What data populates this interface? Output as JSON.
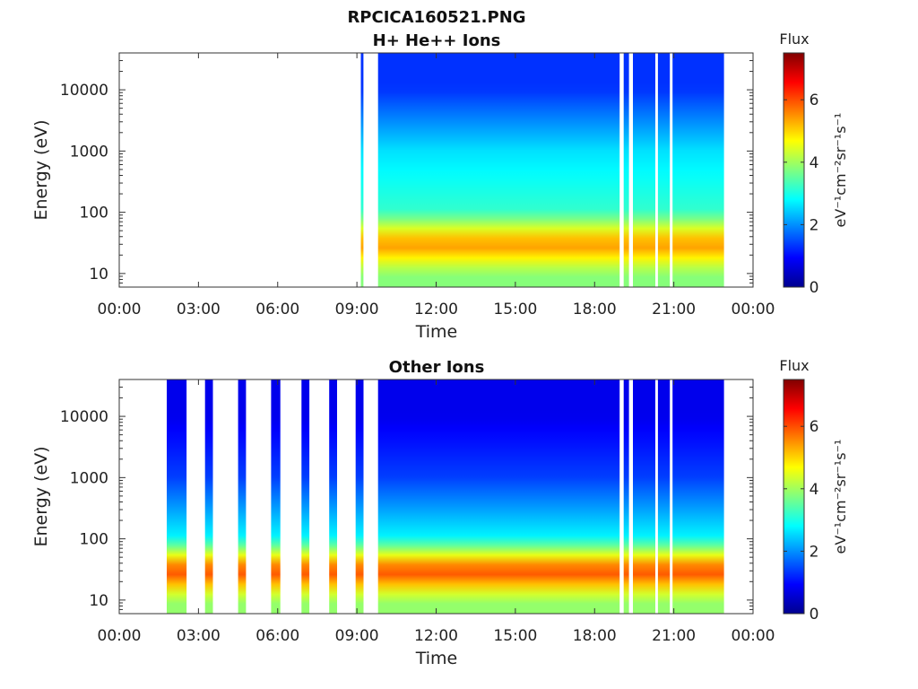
{
  "figure_title": "RPCICA160521.PNG",
  "colorbar_label": "Flux",
  "colorbar_units": "eV⁻¹cm⁻²sr⁻¹s⁻¹",
  "chart_data": [
    {
      "type": "heatmap",
      "title": "H+ He++ Ions",
      "xlabel": "Time",
      "ylabel": "Energy (eV)",
      "y_scale": "log",
      "xlim": [
        "00:00",
        "24:00"
      ],
      "ylim": [
        6,
        40000
      ],
      "x_ticks": [
        "00:00",
        "03:00",
        "06:00",
        "09:00",
        "12:00",
        "15:00",
        "18:00",
        "21:00",
        "00:00"
      ],
      "y_ticks": [
        "10",
        "100",
        "1000",
        "10000"
      ],
      "colorbar": {
        "label": "Flux",
        "range": [
          0,
          7.5
        ],
        "ticks": [
          "0",
          "2",
          "4",
          "6"
        ],
        "colormap": "jet"
      },
      "data_coverage_hours": [
        [
          9.15,
          9.25
        ],
        [
          9.8,
          18.95
        ],
        [
          19.1,
          19.3
        ],
        [
          19.45,
          20.3
        ],
        [
          20.4,
          20.85
        ],
        [
          20.95,
          22.9
        ]
      ],
      "energy_bands": [
        {
          "energy_eV": 10,
          "flux": 3.8
        },
        {
          "energy_eV": 30,
          "flux": 5.6
        },
        {
          "energy_eV": 100,
          "flux": 3.2
        },
        {
          "energy_eV": 1000,
          "flux": 2.6
        },
        {
          "energy_eV": 10000,
          "flux": 1.3
        }
      ]
    },
    {
      "type": "heatmap",
      "title": "Other Ions",
      "xlabel": "Time",
      "ylabel": "Energy (eV)",
      "y_scale": "log",
      "xlim": [
        "00:00",
        "24:00"
      ],
      "ylim": [
        6,
        40000
      ],
      "x_ticks": [
        "00:00",
        "03:00",
        "06:00",
        "09:00",
        "12:00",
        "15:00",
        "18:00",
        "21:00",
        "00:00"
      ],
      "y_ticks": [
        "10",
        "100",
        "1000",
        "10000"
      ],
      "colorbar": {
        "label": "Flux",
        "range": [
          0,
          7.5
        ],
        "ticks": [
          "0",
          "2",
          "4",
          "6"
        ],
        "colormap": "jet"
      },
      "data_coverage_hours": [
        [
          1.8,
          2.55
        ],
        [
          3.25,
          3.55
        ],
        [
          4.5,
          4.8
        ],
        [
          5.75,
          6.1
        ],
        [
          6.9,
          7.2
        ],
        [
          7.95,
          8.25
        ],
        [
          8.95,
          9.25
        ],
        [
          9.8,
          18.95
        ],
        [
          19.1,
          19.3
        ],
        [
          19.45,
          20.3
        ],
        [
          20.4,
          20.85
        ],
        [
          20.95,
          22.9
        ]
      ],
      "energy_bands": [
        {
          "energy_eV": 10,
          "flux": 3.9
        },
        {
          "energy_eV": 30,
          "flux": 6.2
        },
        {
          "energy_eV": 100,
          "flux": 2.8
        },
        {
          "energy_eV": 1000,
          "flux": 1.4
        },
        {
          "energy_eV": 10000,
          "flux": 0.8
        }
      ]
    }
  ]
}
